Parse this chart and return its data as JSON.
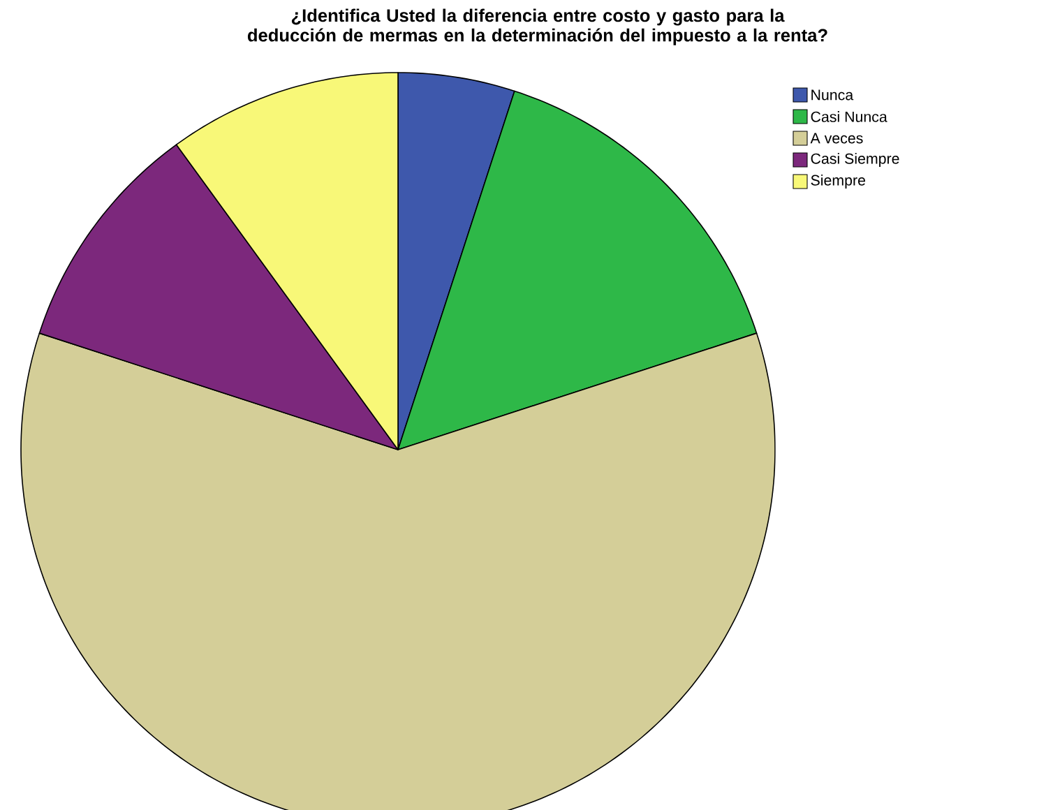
{
  "chart_data": {
    "type": "pie",
    "title": "¿Identifica Usted la diferencia entre costo y gasto para la deducción de mermas en la determinación del impuesto a la renta?",
    "categories": [
      "Nunca",
      "Casi Nunca",
      "A veces",
      "Casi Siempre",
      "Siempre"
    ],
    "values": [
      5,
      15,
      60,
      10,
      10
    ],
    "colors": [
      "#3e58ac",
      "#2eb848",
      "#d4ce98",
      "#7c287c",
      "#f8f878"
    ],
    "legend": "top right"
  }
}
